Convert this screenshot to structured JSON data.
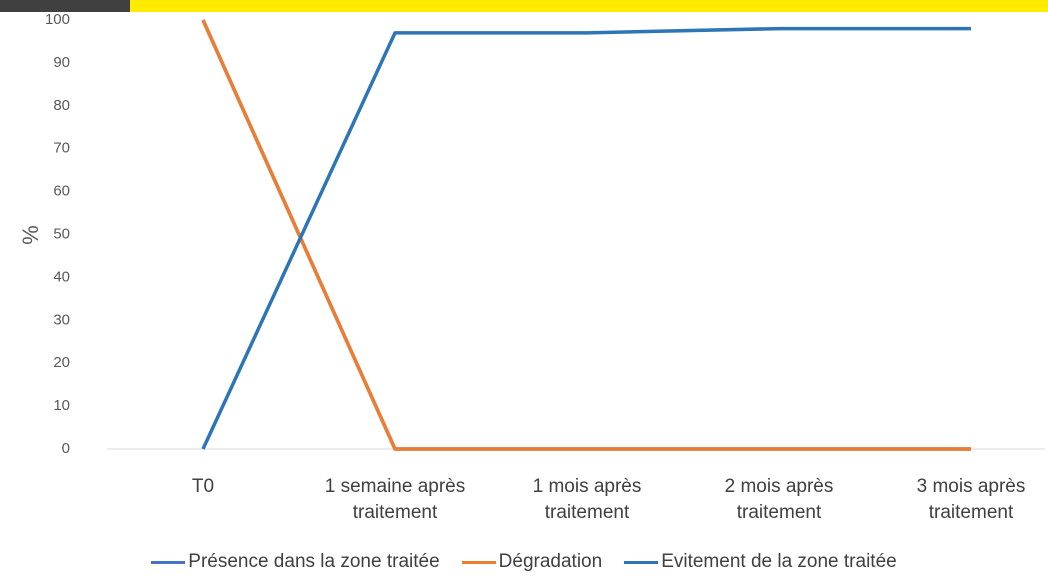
{
  "chart_data": {
    "type": "line",
    "y_label": "%",
    "categories": [
      "T0",
      "1 semaine après traitement",
      "1 mois après traitement",
      "2 mois après traitement",
      "3 mois après traitement"
    ],
    "series": [
      {
        "name": "Présence dans la zone traitée",
        "color": "#4472c4",
        "values": [
          100,
          0,
          0,
          0,
          0
        ]
      },
      {
        "name": "Dégradation",
        "color": "#ed7d31",
        "values": [
          100,
          0,
          0,
          0,
          0
        ]
      },
      {
        "name": "Evitement de la zone traitée",
        "color": "#2e75b6",
        "values": [
          0,
          97,
          97,
          98,
          98
        ]
      }
    ],
    "ylim": [
      0,
      100
    ],
    "yticks": [
      0,
      10,
      20,
      30,
      40,
      50,
      60,
      70,
      80,
      90,
      100
    ],
    "grid": false
  }
}
